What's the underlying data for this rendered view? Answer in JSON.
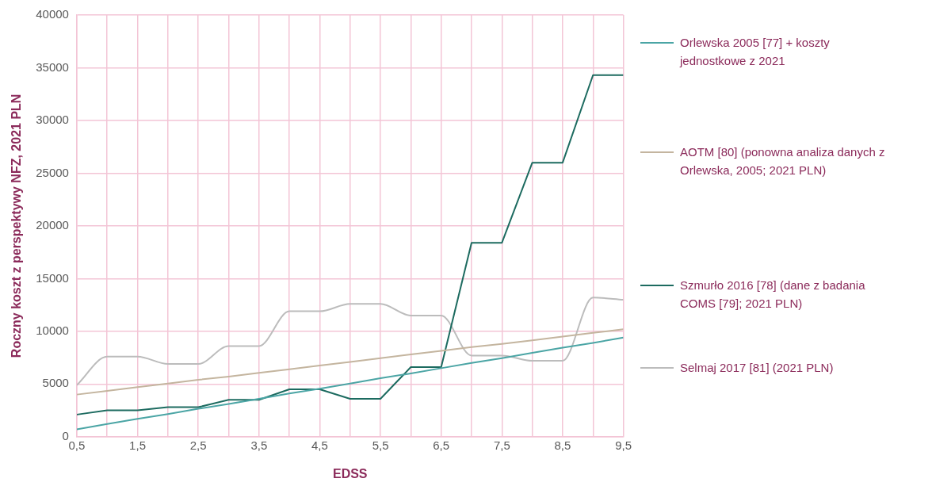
{
  "chart_data": {
    "type": "line",
    "xlabel": "EDSS",
    "ylabel": "Roczny koszt z perspektywy NFZ, 2021 PLN",
    "x": [
      0.5,
      1,
      1.5,
      2,
      2.5,
      3,
      3.5,
      4,
      4.5,
      5,
      5.5,
      6,
      6.5,
      7,
      7.5,
      8,
      8.5,
      9,
      9.5
    ],
    "series": [
      {
        "name": "Orlewska 2005 [77] + koszty jednostkowe z 2021",
        "color": "#4ba5a5",
        "values": [
          700,
          1200,
          1700,
          2150,
          2650,
          3100,
          3600,
          4100,
          4550,
          5050,
          5550,
          6000,
          6500,
          7000,
          7450,
          7950,
          8450,
          8900,
          9400
        ]
      },
      {
        "name": "AOTM [80] (ponowna analiza danych z Orlewska, 2005; 2021 PLN)",
        "color": "#c4b59f",
        "values": [
          4000,
          4350,
          4700,
          5050,
          5400,
          5700,
          6050,
          6400,
          6750,
          7100,
          7450,
          7800,
          8150,
          8500,
          8800,
          9150,
          9500,
          9850,
          10200
        ]
      },
      {
        "name": "Szmurło 2016 [78] (dane z badania COMS [79]; 2021 PLN)",
        "color": "#1d6b60",
        "values": [
          2100,
          2500,
          2500,
          2800,
          2800,
          3500,
          3500,
          4500,
          4500,
          3600,
          3600,
          6600,
          6600,
          18400,
          18400,
          26000,
          26000,
          34300,
          34300
        ]
      },
      {
        "name": "Selmaj 2017 [81] (2021 PLN)",
        "color": "#bcbcbc",
        "values": [
          4900,
          7600,
          7600,
          6900,
          6900,
          8600,
          8600,
          11900,
          11900,
          12600,
          12600,
          11500,
          11500,
          7700,
          7700,
          7200,
          7200,
          13200,
          13000
        ]
      }
    ],
    "xlim": [
      0.5,
      9.5
    ],
    "xticks": [
      {
        "value": 0.5,
        "label": "0,5"
      },
      {
        "value": 1,
        "label": null
      },
      {
        "value": 1.5,
        "label": "1,5"
      },
      {
        "value": 2,
        "label": null
      },
      {
        "value": 2.5,
        "label": "2,5"
      },
      {
        "value": 3,
        "label": null
      },
      {
        "value": 3.5,
        "label": "3,5"
      },
      {
        "value": 4,
        "label": null
      },
      {
        "value": 4.5,
        "label": "4,5"
      },
      {
        "value": 5,
        "label": null
      },
      {
        "value": 5.5,
        "label": "5,5"
      },
      {
        "value": 6,
        "label": null
      },
      {
        "value": 6.5,
        "label": "6,5"
      },
      {
        "value": 7,
        "label": null
      },
      {
        "value": 7.5,
        "label": "7,5"
      },
      {
        "value": 8,
        "label": null
      },
      {
        "value": 8.5,
        "label": "8,5"
      },
      {
        "value": 9,
        "label": null
      },
      {
        "value": 9.5,
        "label": "9,5"
      }
    ],
    "ylim": [
      0,
      40000
    ],
    "yticks": [
      0,
      5000,
      10000,
      15000,
      20000,
      25000,
      30000,
      35000,
      40000
    ],
    "grid": true,
    "legend": "right",
    "marker": "none",
    "line_style": "solid"
  }
}
